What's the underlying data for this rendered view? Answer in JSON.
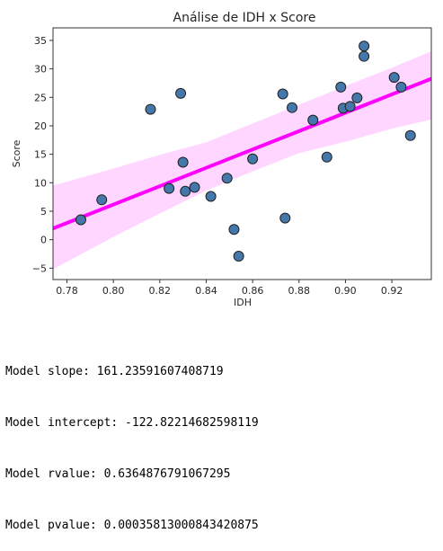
{
  "chart_data": {
    "type": "scatter",
    "title": "Análise de IDH x Score",
    "xlabel": "IDH",
    "ylabel": "Score",
    "xlim": [
      0.774,
      0.937
    ],
    "ylim": [
      -7,
      37.2
    ],
    "xticks": [
      0.78,
      0.8,
      0.82,
      0.84,
      0.86,
      0.88,
      0.9,
      0.92
    ],
    "xtick_labels": [
      "0.78",
      "0.80",
      "0.82",
      "0.84",
      "0.86",
      "0.88",
      "0.90",
      "0.92"
    ],
    "yticks": [
      -5,
      0,
      5,
      10,
      15,
      20,
      25,
      30,
      35
    ],
    "ytick_labels": [
      "−5",
      "0",
      "5",
      "10",
      "15",
      "20",
      "25",
      "30",
      "35"
    ],
    "grid": false,
    "legend": "none",
    "points": [
      {
        "x": 0.786,
        "y": 3.5
      },
      {
        "x": 0.795,
        "y": 7.0
      },
      {
        "x": 0.816,
        "y": 22.9
      },
      {
        "x": 0.824,
        "y": 9.0
      },
      {
        "x": 0.829,
        "y": 25.7
      },
      {
        "x": 0.83,
        "y": 13.6
      },
      {
        "x": 0.831,
        "y": 8.5
      },
      {
        "x": 0.835,
        "y": 9.2
      },
      {
        "x": 0.842,
        "y": 7.6
      },
      {
        "x": 0.849,
        "y": 10.8
      },
      {
        "x": 0.852,
        "y": 1.8
      },
      {
        "x": 0.854,
        "y": -2.9
      },
      {
        "x": 0.86,
        "y": 14.2
      },
      {
        "x": 0.873,
        "y": 25.6
      },
      {
        "x": 0.874,
        "y": 3.8
      },
      {
        "x": 0.877,
        "y": 23.2
      },
      {
        "x": 0.886,
        "y": 21.0
      },
      {
        "x": 0.892,
        "y": 14.5
      },
      {
        "x": 0.898,
        "y": 26.8
      },
      {
        "x": 0.899,
        "y": 23.1
      },
      {
        "x": 0.902,
        "y": 23.4
      },
      {
        "x": 0.905,
        "y": 24.9
      },
      {
        "x": 0.908,
        "y": 34.0
      },
      {
        "x": 0.908,
        "y": 32.2
      },
      {
        "x": 0.921,
        "y": 28.5
      },
      {
        "x": 0.924,
        "y": 26.8
      },
      {
        "x": 0.928,
        "y": 18.3
      }
    ],
    "regression": {
      "slope": 161.23591607408719,
      "intercept": -122.82214682598119
    },
    "confidence_band": {
      "x": [
        0.774,
        0.8,
        0.82,
        0.84,
        0.86,
        0.88,
        0.9,
        0.92,
        0.937
      ],
      "lower": [
        -5.2,
        0.5,
        4.6,
        8.6,
        12.0,
        15.2,
        17.2,
        19.5,
        21.1
      ],
      "upper": [
        9.5,
        12.5,
        14.9,
        17.1,
        20.4,
        23.7,
        27.0,
        30.2,
        33.1
      ]
    },
    "colors": {
      "points": "#4477aa",
      "point_edge": "#222222",
      "line": "#ff00ff",
      "band": "#ffd6ff"
    }
  },
  "output": {
    "lines": [
      "Model slope: 161.23591607408719",
      "Model intercept: -122.82214682598119",
      "Model rvalue: 0.6364876791067295",
      "Model pvalue: 0.00035813000843420875"
    ]
  }
}
